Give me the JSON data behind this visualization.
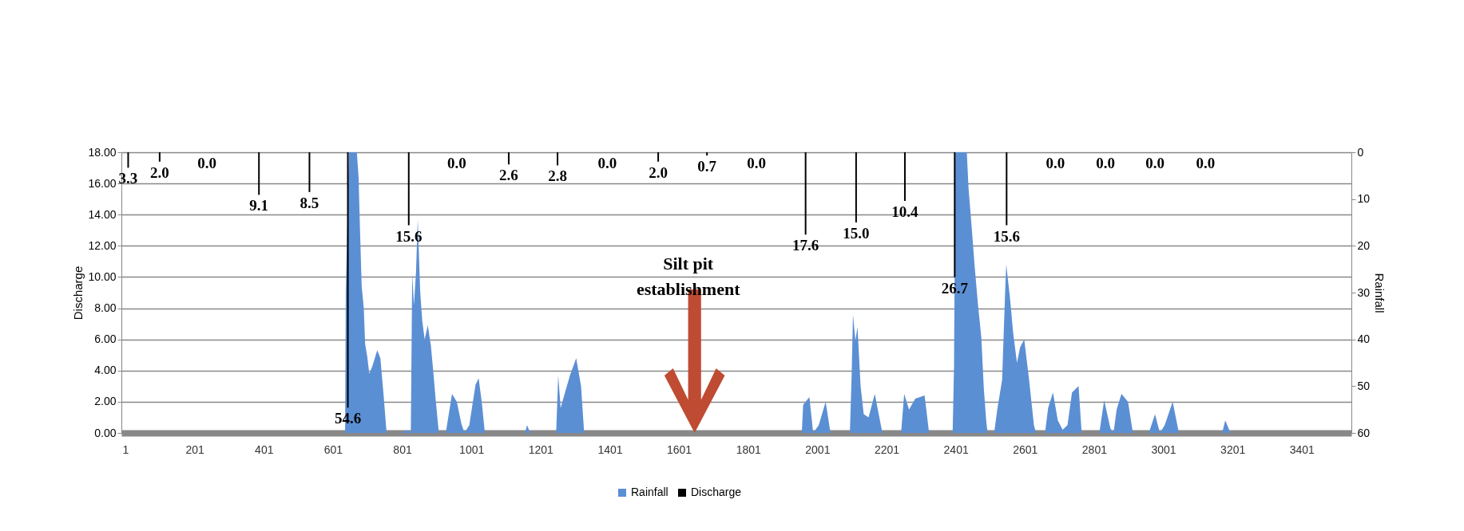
{
  "chart_data": {
    "type": "area",
    "ylabel": "Discharge",
    "y2label": "Rainfall",
    "xlim": [
      1,
      3533
    ],
    "xticks": [
      1,
      201,
      401,
      601,
      801,
      1001,
      1201,
      1401,
      1601,
      1801,
      2001,
      2201,
      2401,
      2601,
      2801,
      3001,
      3201,
      3401
    ],
    "ylim": [
      0,
      18
    ],
    "yticks": [
      {
        "value": 0,
        "label": "0.00"
      },
      {
        "value": 2,
        "label": "2.00"
      },
      {
        "value": 4,
        "label": "4.00"
      },
      {
        "value": 6,
        "label": "6.00"
      },
      {
        "value": 8,
        "label": "8.00"
      },
      {
        "value": 10,
        "label": "10.00"
      },
      {
        "value": 12,
        "label": "12.00"
      },
      {
        "value": 14,
        "label": "14.00"
      },
      {
        "value": 16,
        "label": "16.00"
      },
      {
        "value": 18,
        "label": "18.00"
      }
    ],
    "y2lim": [
      60,
      0
    ],
    "y2ticks": [
      0,
      10,
      20,
      30,
      40,
      50,
      60
    ],
    "grid": "y",
    "legend": "bottom",
    "annotations": [
      "Silt pit establishment"
    ],
    "series": [
      {
        "name": "Rainfall",
        "color": "#5b8fd4",
        "x": [
          1,
          636,
          638,
          647,
          670,
          675,
          679,
          684,
          690,
          694,
          700,
          706,
          715,
          729,
          738,
          747,
          756,
          801,
          810,
          819,
          826,
          830,
          835,
          841,
          846,
          853,
          859,
          866,
          875,
          884,
          891,
          898,
          907,
          927,
          945,
          959,
          972,
          981,
          995,
          1013,
          1022,
          1031,
          1040,
          1156,
          1162,
          1171,
          1246,
          1252,
          1259,
          1273,
          1286,
          1304,
          1318,
          1327,
          1956,
          1960,
          1978,
          1989,
          2005,
          2025,
          2039,
          2095,
          2100,
          2104,
          2111,
          2117,
          2126,
          2135,
          2149,
          2167,
          2189,
          2243,
          2252,
          2266,
          2284,
          2311,
          2324,
          2392,
          2396,
          2400,
          2433,
          2438,
          2447,
          2456,
          2465,
          2475,
          2482,
          2489,
          2493,
          2512,
          2521,
          2535,
          2544,
          2547,
          2558,
          2567,
          2578,
          2587,
          2599,
          2613,
          2627,
          2633,
          2659,
          2668,
          2682,
          2696,
          2710,
          2724,
          2737,
          2756,
          2765,
          2816,
          2830,
          2848,
          2857,
          2866,
          2880,
          2899,
          2913,
          2959,
          2977,
          2991,
          3005,
          3028,
          3046,
          3171,
          3180,
          3195,
          3533
        ],
        "values": [
          0,
          0,
          9.0,
          18,
          18,
          16.4,
          13.1,
          9.4,
          8.0,
          5.7,
          4.9,
          3.8,
          4.3,
          5.3,
          4.8,
          2.5,
          0,
          0,
          0.15,
          0.15,
          0,
          10.2,
          8.2,
          10.3,
          13.7,
          9.1,
          7.2,
          6.0,
          6.9,
          5.6,
          3.9,
          2.1,
          0,
          0,
          2.5,
          2.0,
          0.6,
          0,
          0.5,
          3.1,
          3.5,
          2.0,
          0,
          0,
          0.5,
          0,
          0,
          3.7,
          1.6,
          2.7,
          3.7,
          4.8,
          3.0,
          0,
          0,
          1.8,
          2.3,
          0,
          0.5,
          2.0,
          0,
          0,
          3.6,
          7.6,
          5.9,
          6.8,
          3.0,
          1.2,
          1.0,
          2.5,
          0,
          0,
          2.5,
          1.5,
          2.2,
          2.4,
          0,
          0,
          4.2,
          18,
          18,
          15.7,
          13.2,
          10.6,
          8.3,
          6.1,
          2.9,
          0.8,
          0,
          0,
          1.5,
          3.4,
          9.2,
          10.8,
          8.6,
          6.4,
          4.5,
          5.5,
          6.0,
          3.4,
          0.5,
          0,
          0,
          1.6,
          2.6,
          0.8,
          0.2,
          0.5,
          2.6,
          3.0,
          0,
          0,
          2.1,
          0.3,
          0,
          1.5,
          2.5,
          2.0,
          0,
          0,
          1.2,
          0,
          0.5,
          2.0,
          0,
          0,
          0.8,
          0,
          0
        ]
      },
      {
        "name": "Discharge",
        "type": "bar",
        "axis": "y2",
        "color": "#000000",
        "x": [
          9,
          100,
          237,
          387,
          533,
          644,
          820,
          959,
          1109,
          1250,
          1394,
          1541,
          1682,
          1825,
          1967,
          2113,
          2254,
          2398,
          2548,
          2689,
          2834,
          2977,
          3123
        ],
        "values": [
          3.3,
          2.0,
          0,
          9.1,
          8.5,
          54.6,
          15.6,
          0,
          2.6,
          2.8,
          0,
          2.0,
          0.7,
          0,
          17.6,
          15.0,
          10.4,
          26.7,
          15.6,
          0,
          0,
          0,
          0
        ],
        "value_labels": [
          "3.3",
          "2.0",
          "0.0",
          "9.1",
          "8.5",
          "54.6",
          "15.6",
          "0.0",
          "2.6",
          "2.8",
          "0.0",
          "2.0",
          "0.7",
          "0.0",
          "17.6",
          "15.0",
          "10.4",
          "26.7",
          "15.6",
          "0.0",
          "0.0",
          "0.0",
          "0.0"
        ]
      }
    ]
  }
}
